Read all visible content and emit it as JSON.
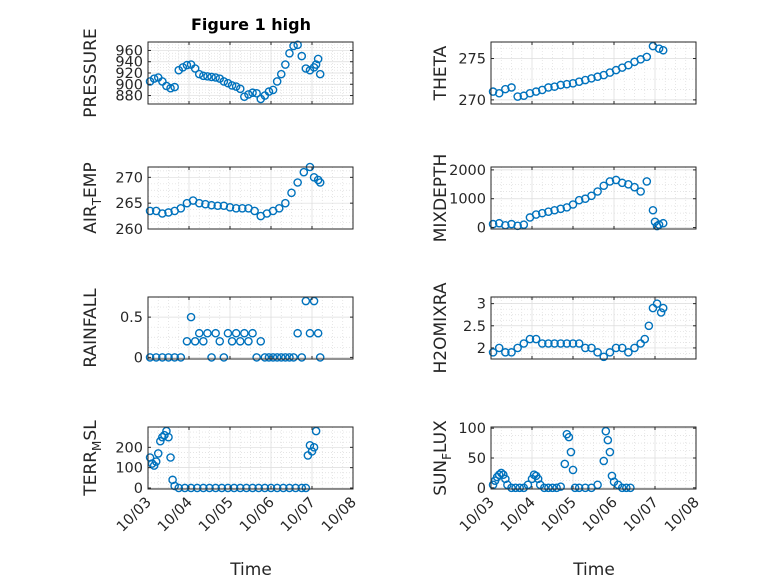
{
  "title": "Figure 1 high",
  "xlabel": "Time",
  "colors": {
    "marker": "#0072BD",
    "axis": "#262626",
    "grid": "#dcdcdc"
  },
  "chart_data": [
    {
      "type": "scatter",
      "ylabel": "PRESSURE",
      "xlim": [
        0,
        5
      ],
      "ylim": [
        865,
        975
      ],
      "yticks": [
        880,
        900,
        920,
        940,
        960
      ],
      "x": [
        0.05,
        0.15,
        0.25,
        0.35,
        0.45,
        0.55,
        0.65,
        0.75,
        0.85,
        0.95,
        1.05,
        1.15,
        1.25,
        1.35,
        1.45,
        1.55,
        1.65,
        1.75,
        1.85,
        1.95,
        2.05,
        2.15,
        2.25,
        2.35,
        2.45,
        2.55,
        2.65,
        2.75,
        2.85,
        2.95,
        3.05,
        3.15,
        3.25,
        3.35,
        3.45,
        3.55,
        3.65,
        3.75,
        3.85,
        3.95,
        4.05,
        4.1,
        4.15,
        4.2
      ],
      "y": [
        905,
        910,
        912,
        905,
        897,
        893,
        895,
        925,
        930,
        934,
        935,
        928,
        918,
        915,
        914,
        913,
        912,
        910,
        905,
        902,
        898,
        896,
        892,
        878,
        882,
        885,
        884,
        874,
        880,
        887,
        890,
        905,
        918,
        935,
        955,
        968,
        970,
        950,
        928,
        925,
        930,
        935,
        945,
        918
      ]
    },
    {
      "type": "scatter",
      "ylabel": "THETA",
      "xlim": [
        0,
        5
      ],
      "ylim": [
        269.5,
        277
      ],
      "yticks": [
        270,
        275
      ],
      "x": [
        0.05,
        0.2,
        0.35,
        0.5,
        0.65,
        0.8,
        0.95,
        1.1,
        1.25,
        1.4,
        1.55,
        1.7,
        1.85,
        2.0,
        2.15,
        2.3,
        2.45,
        2.6,
        2.75,
        2.9,
        3.05,
        3.2,
        3.35,
        3.5,
        3.65,
        3.8,
        3.95,
        4.1,
        4.2
      ],
      "y": [
        271,
        270.8,
        271.3,
        271.5,
        270.4,
        270.5,
        270.8,
        271,
        271.2,
        271.5,
        271.6,
        271.8,
        271.9,
        272,
        272.2,
        272.4,
        272.6,
        272.8,
        273,
        273.3,
        273.6,
        273.9,
        274.2,
        274.6,
        274.9,
        275.2,
        276.5,
        276.2,
        276
      ]
    },
    {
      "type": "scatter",
      "ylabel": "AIR_TEMP",
      "xlim": [
        0,
        5
      ],
      "ylim": [
        260,
        272
      ],
      "yticks": [
        260,
        265,
        270
      ],
      "x": [
        0.05,
        0.2,
        0.35,
        0.5,
        0.65,
        0.8,
        0.95,
        1.1,
        1.25,
        1.4,
        1.55,
        1.7,
        1.85,
        2.0,
        2.15,
        2.3,
        2.45,
        2.6,
        2.75,
        2.9,
        3.05,
        3.2,
        3.35,
        3.5,
        3.65,
        3.8,
        3.95,
        4.05,
        4.15,
        4.2
      ],
      "y": [
        263.5,
        263.5,
        263,
        263.2,
        263.5,
        264,
        265,
        265.5,
        265,
        264.8,
        264.6,
        264.5,
        264.5,
        264.2,
        264,
        264,
        264,
        263.5,
        262.5,
        263,
        263.5,
        264,
        265,
        267,
        269,
        271,
        272,
        270,
        269.5,
        269
      ]
    },
    {
      "type": "scatter",
      "ylabel": "MIXDEPTH",
      "xlim": [
        0,
        5
      ],
      "ylim": [
        -50,
        2100
      ],
      "yticks": [
        0,
        1000,
        2000
      ],
      "x": [
        0.05,
        0.2,
        0.35,
        0.5,
        0.65,
        0.8,
        0.95,
        1.1,
        1.25,
        1.4,
        1.55,
        1.7,
        1.85,
        2.0,
        2.15,
        2.3,
        2.45,
        2.6,
        2.75,
        2.9,
        3.05,
        3.2,
        3.35,
        3.5,
        3.65,
        3.8,
        3.95,
        4.0,
        4.05,
        4.1,
        4.2
      ],
      "y": [
        120,
        150,
        80,
        120,
        60,
        100,
        350,
        450,
        500,
        550,
        600,
        650,
        700,
        800,
        950,
        1000,
        1100,
        1250,
        1450,
        1600,
        1650,
        1550,
        1500,
        1400,
        1250,
        1600,
        600,
        200,
        50,
        100,
        150
      ]
    },
    {
      "type": "scatter",
      "ylabel": "RAINFALL",
      "xlim": [
        0,
        5
      ],
      "ylim": [
        -0.02,
        0.75
      ],
      "yticks": [
        0,
        0.5
      ],
      "x": [
        0.05,
        0.2,
        0.35,
        0.5,
        0.65,
        0.8,
        0.95,
        1.05,
        1.15,
        1.25,
        1.35,
        1.45,
        1.55,
        1.65,
        1.75,
        1.85,
        1.95,
        2.05,
        2.15,
        2.25,
        2.35,
        2.45,
        2.55,
        2.65,
        2.75,
        2.85,
        2.95,
        3.05,
        3.15,
        3.25,
        3.35,
        3.45,
        3.55,
        3.65,
        3.75,
        3.85,
        3.95,
        4.05,
        4.15,
        4.2
      ],
      "y": [
        0,
        0,
        0,
        0,
        0,
        0,
        0.2,
        0.5,
        0.2,
        0.3,
        0.2,
        0.3,
        0,
        0.3,
        0.2,
        0,
        0.3,
        0.2,
        0.3,
        0.2,
        0.3,
        0.2,
        0.3,
        0,
        0.2,
        0,
        0,
        0,
        0,
        0,
        0,
        0,
        0,
        0.3,
        0,
        0.7,
        0.3,
        0.7,
        0.3,
        0
      ]
    },
    {
      "type": "scatter",
      "ylabel": "H2OMIXRA",
      "xlim": [
        0,
        5
      ],
      "ylim": [
        1.75,
        3.15
      ],
      "yticks": [
        2,
        2.5,
        3
      ],
      "x": [
        0.05,
        0.2,
        0.35,
        0.5,
        0.65,
        0.8,
        0.95,
        1.1,
        1.25,
        1.4,
        1.55,
        1.7,
        1.85,
        2.0,
        2.15,
        2.3,
        2.45,
        2.6,
        2.75,
        2.9,
        3.05,
        3.2,
        3.35,
        3.5,
        3.65,
        3.75,
        3.85,
        3.95,
        4.05,
        4.15,
        4.2
      ],
      "y": [
        1.9,
        2,
        1.9,
        1.9,
        2,
        2.1,
        2.2,
        2.2,
        2.1,
        2.1,
        2.1,
        2.1,
        2.1,
        2.1,
        2.1,
        2,
        2,
        1.9,
        1.8,
        1.9,
        2,
        2,
        1.9,
        2,
        2.1,
        2.2,
        2.5,
        2.9,
        3,
        2.8,
        2.9
      ]
    },
    {
      "type": "scatter",
      "ylabel": "TERR_MSL",
      "xlim": [
        0,
        5
      ],
      "ylim": [
        -5,
        300
      ],
      "yticks": [
        0,
        100,
        200
      ],
      "x": [
        0.05,
        0.1,
        0.15,
        0.2,
        0.25,
        0.3,
        0.35,
        0.4,
        0.45,
        0.5,
        0.55,
        0.6,
        0.65,
        0.75,
        0.9,
        1.05,
        1.2,
        1.35,
        1.5,
        1.65,
        1.8,
        1.95,
        2.1,
        2.25,
        2.4,
        2.55,
        2.7,
        2.85,
        3.0,
        3.15,
        3.3,
        3.45,
        3.6,
        3.75,
        3.85,
        3.9,
        3.95,
        4.0,
        4.05,
        4.1
      ],
      "y": [
        150,
        120,
        110,
        130,
        170,
        230,
        250,
        260,
        280,
        250,
        150,
        40,
        10,
        0,
        0,
        0,
        0,
        0,
        0,
        0,
        0,
        0,
        0,
        0,
        0,
        0,
        0,
        0,
        0,
        0,
        0,
        0,
        0,
        0,
        0,
        160,
        210,
        180,
        200,
        280
      ]
    },
    {
      "type": "scatter",
      "ylabel": "SUN_FLUX",
      "xlim": [
        0,
        5
      ],
      "ylim": [
        -2,
        102
      ],
      "yticks": [
        0,
        50,
        100
      ],
      "x": [
        0.05,
        0.1,
        0.15,
        0.2,
        0.25,
        0.3,
        0.35,
        0.4,
        0.5,
        0.6,
        0.7,
        0.8,
        0.9,
        1.0,
        1.05,
        1.1,
        1.15,
        1.2,
        1.3,
        1.4,
        1.5,
        1.6,
        1.7,
        1.8,
        1.85,
        1.9,
        1.95,
        2.0,
        2.05,
        2.15,
        2.3,
        2.45,
        2.6,
        2.75,
        2.8,
        2.85,
        2.9,
        2.95,
        3.0,
        3.1,
        3.2,
        3.3,
        3.4
      ],
      "y": [
        5,
        12,
        18,
        22,
        25,
        22,
        15,
        5,
        0,
        0,
        0,
        0,
        5,
        15,
        22,
        20,
        15,
        5,
        0,
        0,
        0,
        0,
        2,
        40,
        90,
        85,
        60,
        30,
        0,
        0,
        0,
        0,
        5,
        45,
        95,
        80,
        60,
        20,
        10,
        5,
        0,
        0,
        0
      ]
    }
  ],
  "xticks": [
    "10/03",
    "10/04",
    "10/05",
    "10/06",
    "10/07",
    "10/08"
  ]
}
